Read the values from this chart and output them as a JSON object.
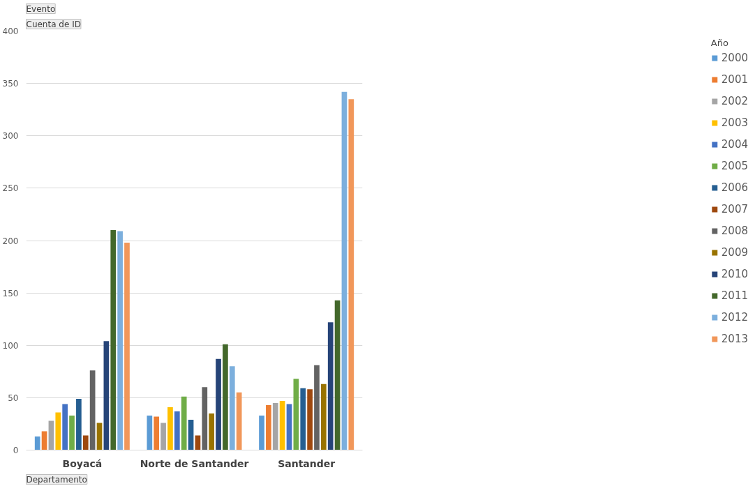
{
  "chart_data": {
    "type": "bar",
    "annotations": [
      "Evento"
    ],
    "ylabel": "Cuenta de ID",
    "xlabel": "Departamento",
    "legend_title": "Año",
    "categories": [
      "Boyacá",
      "Norte de Santander",
      "Santander"
    ],
    "series": [
      {
        "name": "2000",
        "color": "#5b9bd5",
        "values": [
          13,
          33,
          33
        ]
      },
      {
        "name": "2001",
        "color": "#ed7d31",
        "values": [
          18,
          32,
          43
        ]
      },
      {
        "name": "2002",
        "color": "#a5a5a5",
        "values": [
          28,
          26,
          45
        ]
      },
      {
        "name": "2003",
        "color": "#ffc000",
        "values": [
          36,
          41,
          47
        ]
      },
      {
        "name": "2004",
        "color": "#4472c4",
        "values": [
          44,
          37,
          44
        ]
      },
      {
        "name": "2005",
        "color": "#70ad47",
        "values": [
          33,
          51,
          68
        ]
      },
      {
        "name": "2006",
        "color": "#255e91",
        "values": [
          49,
          29,
          59
        ]
      },
      {
        "name": "2007",
        "color": "#9e480e",
        "values": [
          14,
          14,
          58
        ]
      },
      {
        "name": "2008",
        "color": "#636363",
        "values": [
          76,
          60,
          81
        ]
      },
      {
        "name": "2009",
        "color": "#997300",
        "values": [
          26,
          35,
          63
        ]
      },
      {
        "name": "2010",
        "color": "#264478",
        "values": [
          104,
          87,
          122
        ]
      },
      {
        "name": "2011",
        "color": "#43682b",
        "values": [
          210,
          101,
          143
        ]
      },
      {
        "name": "2012",
        "color": "#7cafdd",
        "values": [
          209,
          80,
          342
        ]
      },
      {
        "name": "2013",
        "color": "#f1975a",
        "values": [
          198,
          55,
          335
        ]
      }
    ],
    "ylim": [
      0,
      400
    ],
    "yticks": [
      0,
      50,
      100,
      150,
      200,
      250,
      300,
      350,
      400
    ],
    "grid": "y",
    "legend": "right"
  }
}
